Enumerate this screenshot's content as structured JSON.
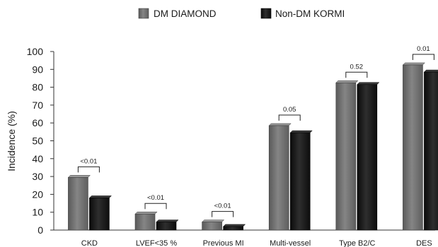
{
  "chart_data": {
    "type": "bar",
    "ylabel": "Incidence (%)",
    "ylim": [
      0,
      100
    ],
    "yticks": [
      0,
      10,
      20,
      30,
      40,
      50,
      60,
      70,
      80,
      90,
      100
    ],
    "categories": [
      "CKD",
      "LVEF<35 %",
      "Previous MI",
      "Multi-vessel",
      "Type B2/C",
      "DES"
    ],
    "series": [
      {
        "name": "DM DIAMOND",
        "color": "#6f6f6f",
        "values": [
          29.5,
          9,
          4.5,
          58.5,
          82.5,
          92.5
        ]
      },
      {
        "name": "Non-DM KORMI",
        "color": "#151515",
        "values": [
          18,
          4.5,
          2,
          54.5,
          81.5,
          88.5
        ]
      }
    ],
    "annotations": [
      "<0.01",
      "<0.01",
      "<0.01",
      "0.05",
      "0.52",
      "0.01"
    ],
    "legend_position": "top-center",
    "grid": false
  }
}
